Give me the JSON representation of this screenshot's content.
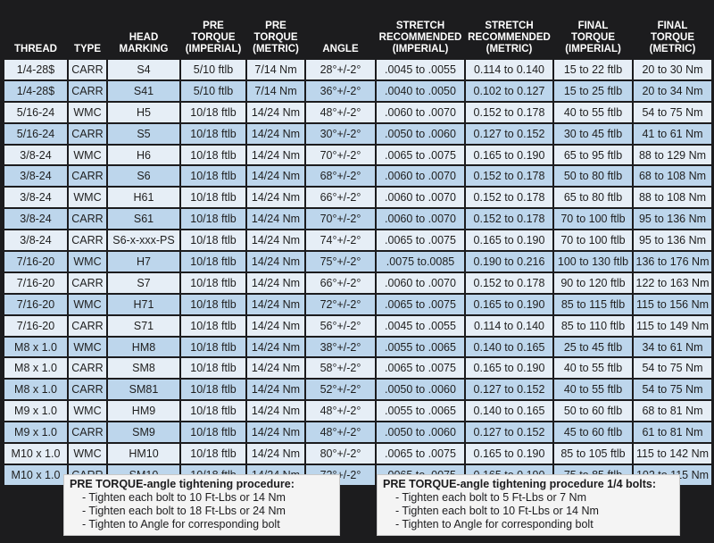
{
  "headers": [
    {
      "line1": "THREAD",
      "line2": ""
    },
    {
      "line1": "TYPE",
      "line2": ""
    },
    {
      "line1": "HEAD",
      "line2": "MARKING"
    },
    {
      "line1": "PRE TORQUE",
      "line2": "(Imperial)"
    },
    {
      "line1": "PRE TORQUE",
      "line2": "(Metric)"
    },
    {
      "line1": "ANGLE",
      "line2": ""
    },
    {
      "line1": "STRETCH RECOMMENDED",
      "line2": "(Imperial)"
    },
    {
      "line1": "STRETCH RECOMMENDED",
      "line2": "(Metric)"
    },
    {
      "line1": "FINAL TORQUE",
      "line2": "(Imperial)"
    },
    {
      "line1": "FINAL TORQUE",
      "line2": "(Metric)"
    }
  ],
  "rows": [
    [
      "1/4-28$",
      "CARR",
      "S4",
      "5/10 ftlb",
      "7/14 Nm",
      "28°+/-2°",
      ".0045 to .0055",
      "0.114 to 0.140",
      "15 to 22 ftlb",
      "20 to 30 Nm"
    ],
    [
      "1/4-28$",
      "CARR",
      "S41",
      "5/10 ftlb",
      "7/14 Nm",
      "36°+/-2°",
      ".0040 to .0050",
      "0.102 to 0.127",
      "15 to 25 ftlb",
      "20 to 34 Nm"
    ],
    [
      "5/16-24",
      "WMC",
      "H5",
      "10/18 ftlb",
      "14/24 Nm",
      "48°+/-2°",
      ".0060 to .0070",
      "0.152 to 0.178",
      "40 to 55 ftlb",
      "54 to 75 Nm"
    ],
    [
      "5/16-24",
      "CARR",
      "S5",
      "10/18 ftlb",
      "14/24 Nm",
      "30°+/-2°",
      ".0050 to .0060",
      "0.127 to 0.152",
      "30 to 45 ftlb",
      "41 to 61 Nm"
    ],
    [
      "3/8-24",
      "WMC",
      "H6",
      "10/18 ftlb",
      "14/24 Nm",
      "70°+/-2°",
      ".0065 to .0075",
      "0.165 to 0.190",
      "65 to 95 ftlb",
      "88 to 129 Nm"
    ],
    [
      "3/8-24",
      "CARR",
      "S6",
      "10/18 ftlb",
      "14/24 Nm",
      "68°+/-2°",
      ".0060 to .0070",
      "0.152 to 0.178",
      "50 to 80 ftlb",
      "68 to 108 Nm"
    ],
    [
      "3/8-24",
      "WMC",
      "H61",
      "10/18 ftlb",
      "14/24 Nm",
      "66°+/-2°",
      ".0060 to .0070",
      "0.152 to 0.178",
      "65 to 80 ftlb",
      "88 to 108 Nm"
    ],
    [
      "3/8-24",
      "CARR",
      "S61",
      "10/18 ftlb",
      "14/24 Nm",
      "70°+/-2°",
      ".0060 to .0070",
      "0.152 to 0.178",
      "70 to 100  ftlb",
      "95 to 136 Nm"
    ],
    [
      "3/8-24",
      "CARR",
      "S6-x-xxx-PS",
      "10/18 ftlb",
      "14/24 Nm",
      "74°+/-2°",
      ".0065 to .0075",
      "0.165 to 0.190",
      "70 to 100  ftlb",
      "95 to 136 Nm"
    ],
    [
      "7/16-20",
      "WMC",
      "H7",
      "10/18 ftlb",
      "14/24 Nm",
      "75°+/-2°",
      ".0075 to.0085",
      "0.190 to 0.216",
      "100 to 130  ftlb",
      "136 to 176 Nm"
    ],
    [
      "7/16-20",
      "CARR",
      "S7",
      "10/18 ftlb",
      "14/24 Nm",
      "66°+/-2°",
      ".0060 to .0070",
      "0.152 to 0.178",
      "90 to 120 ftlb",
      "122 to 163 Nm"
    ],
    [
      "7/16-20",
      "WMC",
      "H71",
      "10/18 ftlb",
      "14/24 Nm",
      "72°+/-2°",
      ".0065 to .0075",
      "0.165 to 0.190",
      "85 to 115 ftlb",
      "115 to 156 Nm"
    ],
    [
      "7/16-20",
      "CARR",
      "S71",
      "10/18 ftlb",
      "14/24 Nm",
      "56°+/-2°",
      ".0045 to .0055",
      "0.114 to 0.140",
      "85 to 110  ftlb",
      "115 to 149 Nm"
    ],
    [
      "M8 x 1.0",
      "WMC",
      "HM8",
      "10/18 ftlb",
      "14/24 Nm",
      "38°+/-2°",
      ".0055 to .0065",
      "0.140 to 0.165",
      "25 to 45 ftlb",
      "34 to 61 Nm"
    ],
    [
      "M8 x 1.0",
      "CARR",
      "SM8",
      "10/18 ftlb",
      "14/24 Nm",
      "58°+/-2°",
      ".0065 to .0075",
      "0.165 to 0.190",
      "40 to 55 ftlb",
      "54 to 75 Nm"
    ],
    [
      "M8 x 1.0",
      "CARR",
      "SM81",
      "10/18 ftlb",
      "14/24 Nm",
      "52°+/-2°",
      ".0050 to .0060",
      "0.127 to 0.152",
      "40 to 55 ftlb",
      "54 to 75 Nm"
    ],
    [
      "M9 x 1.0",
      "WMC",
      "HM9",
      "10/18 ftlb",
      "14/24 Nm",
      "48°+/-2°",
      ".0055 to .0065",
      "0.140 to 0.165",
      "50 to 60 ftlb",
      "68 to 81 Nm"
    ],
    [
      "M9 x 1.0",
      "CARR",
      "SM9",
      "10/18 ftlb",
      "14/24 Nm",
      "48°+/-2°",
      ".0050 to .0060",
      "0.127 to 0.152",
      "45 to 60  ftlb",
      "61 to 81 Nm"
    ],
    [
      "M10 x 1.0",
      "WMC",
      "HM10",
      "10/18 ftlb",
      "14/24 Nm",
      "80°+/-2°",
      ".0065 to .0075",
      "0.165 to 0.190",
      "85 to 105 ftlb",
      "115 to 142 Nm"
    ],
    [
      "M10 x 1.0",
      "CARR",
      "SM10",
      "10/18 ftlb",
      "14/24 Nm",
      "72°+/-2°",
      ".0065 to .0075",
      "0.165 to 0.190",
      "75 to 85 ftlb",
      "102 to 115 Nm"
    ]
  ],
  "procedures": [
    {
      "title": "PRE TORQUE-angle tightening procedure:",
      "steps": [
        "- Tighten each bolt to 10 Ft-Lbs or 14 Nm",
        "- Tighten each bolt to 18 Ft-Lbs or 24 Nm",
        "- Tighten to Angle for corresponding bolt"
      ]
    },
    {
      "title": "PRE TORQUE-angle tightening procedure 1/4 bolts:",
      "steps": [
        "- Tighten each bolt to 5 Ft-Lbs or 7 Nm",
        "- Tighten each bolt to 10 Ft-Lbs or 14 Nm",
        "- Tighten to Angle for corresponding bolt"
      ]
    }
  ],
  "colors": {
    "background": "#1c1c1e",
    "row_light": "#e6eef6",
    "row_dark": "#bdd6ec",
    "header_text": "#ffffff"
  }
}
